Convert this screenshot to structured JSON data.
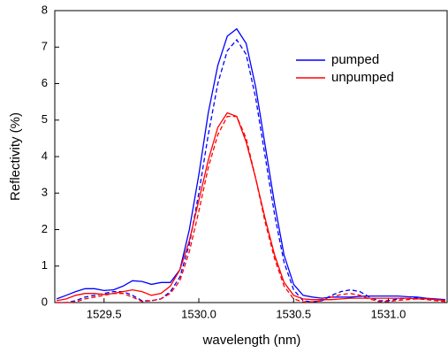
{
  "chart_data": {
    "type": "line",
    "xlabel": "wavelength (nm)",
    "ylabel": "Reflectivity (%)",
    "x": [
      1529.25,
      1529.3,
      1529.35,
      1529.4,
      1529.45,
      1529.5,
      1529.55,
      1529.6,
      1529.65,
      1529.7,
      1529.75,
      1529.8,
      1529.85,
      1529.9,
      1529.95,
      1530.0,
      1530.05,
      1530.1,
      1530.15,
      1530.2,
      1530.25,
      1530.3,
      1530.35,
      1530.4,
      1530.45,
      1530.5,
      1530.55,
      1530.6,
      1530.65,
      1530.7,
      1530.75,
      1530.8,
      1530.85,
      1530.9,
      1530.95,
      1531.0,
      1531.05,
      1531.1,
      1531.15,
      1531.2,
      1531.25,
      1531.3
    ],
    "series": [
      {
        "name": "pumped",
        "color": "#0000ff",
        "dash": false,
        "values": [
          0.1,
          0.2,
          0.3,
          0.38,
          0.38,
          0.33,
          0.35,
          0.45,
          0.6,
          0.58,
          0.5,
          0.55,
          0.55,
          0.9,
          2.0,
          3.5,
          5.2,
          6.5,
          7.3,
          7.5,
          7.1,
          5.9,
          4.3,
          2.7,
          1.3,
          0.5,
          0.2,
          0.15,
          0.12,
          0.15,
          0.15,
          0.15,
          0.17,
          0.18,
          0.18,
          0.18,
          0.18,
          0.16,
          0.15,
          0.12,
          0.1,
          0.08
        ]
      },
      {
        "color": "#0000ff",
        "dash": true,
        "values": [
          0,
          0,
          0.05,
          0.15,
          0.2,
          0.25,
          0.3,
          0.3,
          0.2,
          0.05,
          0.05,
          0.1,
          0.3,
          0.7,
          1.6,
          3.0,
          4.6,
          6.0,
          6.9,
          7.2,
          6.8,
          5.6,
          4.0,
          2.4,
          1.1,
          0.35,
          0.05,
          0.02,
          0.05,
          0.2,
          0.3,
          0.35,
          0.3,
          0.15,
          0.05,
          0.05,
          0.1,
          0.12,
          0.12,
          0.1,
          0.08,
          0.05
        ]
      },
      {
        "name": "unpumped",
        "color": "#ff0000",
        "dash": false,
        "values": [
          0.05,
          0.1,
          0.2,
          0.25,
          0.25,
          0.22,
          0.25,
          0.3,
          0.35,
          0.3,
          0.2,
          0.25,
          0.45,
          0.9,
          1.7,
          2.8,
          3.9,
          4.8,
          5.2,
          5.1,
          4.4,
          3.4,
          2.3,
          1.3,
          0.55,
          0.2,
          0.1,
          0.08,
          0.08,
          0.08,
          0.1,
          0.12,
          0.12,
          0.12,
          0.12,
          0.12,
          0.12,
          0.12,
          0.1,
          0.1,
          0.08,
          0.06
        ]
      },
      {
        "color": "#ff0000",
        "dash": true,
        "values": [
          0,
          0,
          0.02,
          0.1,
          0.15,
          0.2,
          0.25,
          0.25,
          0.15,
          0.03,
          0.05,
          0.1,
          0.25,
          0.6,
          1.4,
          2.5,
          3.7,
          4.6,
          5.1,
          5.1,
          4.5,
          3.4,
          2.2,
          1.2,
          0.45,
          0.1,
          0.02,
          0.02,
          0.05,
          0.15,
          0.22,
          0.25,
          0.2,
          0.1,
          0.03,
          0.03,
          0.06,
          0.08,
          0.1,
          0.08,
          0.05,
          0.03
        ]
      }
    ],
    "xlim": [
      1529.24,
      1531.31
    ],
    "ylim": [
      0,
      8
    ],
    "xticks": [
      1529.5,
      {
        "value": 1530,
        "label": "1530.0"
      },
      1530.5,
      {
        "value": 1531,
        "label": "1531.0"
      }
    ],
    "yticks": [
      0,
      1,
      2,
      3,
      4,
      5,
      6,
      7,
      8
    ],
    "legend": "upper right"
  }
}
